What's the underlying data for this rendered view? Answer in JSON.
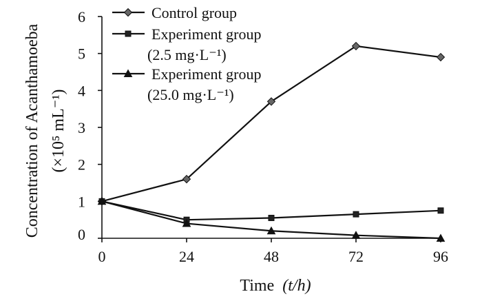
{
  "chart_data": {
    "type": "line",
    "title": "",
    "xlabel": "Time",
    "xlabel_unit": "(t/h)",
    "ylabel_line1": "Concentration of Acanthamoeba",
    "ylabel_line2": "(×10⁵ mL⁻¹)",
    "x": [
      0,
      24,
      48,
      72,
      96
    ],
    "x_tick_labels": [
      "0",
      "24",
      "48",
      "72",
      "96"
    ],
    "y_tick_labels": [
      "0",
      "1",
      "2",
      "3",
      "4",
      "5",
      "6"
    ],
    "xlim": [
      0,
      96
    ],
    "ylim": [
      0,
      6
    ],
    "grid": false,
    "legend_position": "top-left",
    "series": [
      {
        "name": "Control group",
        "legend_lines": [
          "Control group"
        ],
        "marker": "diamond",
        "values": [
          1.0,
          1.6,
          3.7,
          5.2,
          4.9
        ]
      },
      {
        "name": "Experiment group (2.5 mg·L⁻¹)",
        "legend_lines": [
          "Experiment group",
          "(2.5  mg·L⁻¹)"
        ],
        "marker": "square",
        "values": [
          1.0,
          0.5,
          0.55,
          0.65,
          0.75
        ]
      },
      {
        "name": "Experiment group (25.0 mg·L⁻¹)",
        "legend_lines": [
          "Experiment group",
          "(25.0 mg·L⁻¹)"
        ],
        "marker": "triangle",
        "values": [
          1.0,
          0.4,
          0.2,
          0.08,
          0.0
        ]
      }
    ]
  }
}
